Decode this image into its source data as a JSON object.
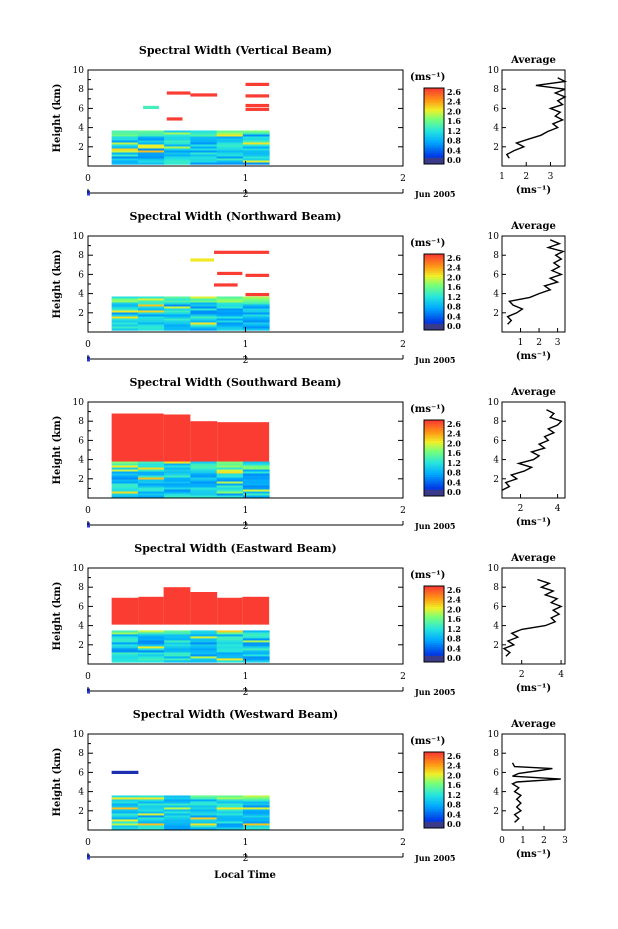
{
  "figure": {
    "xlabel": "Local Time",
    "date_label": "Jun 2005",
    "colorbar_unit": "(ms⁻¹)",
    "colorbar_ticks": [
      "2.6",
      "2.4",
      "2.0",
      "1.6",
      "1.2",
      "0.8",
      "0.4",
      "0.0"
    ],
    "avg_title": "Average",
    "avg_xlabel": "(ms⁻¹)"
  },
  "chart_data": [
    {
      "type": "heatmap",
      "title": "Spectral Width (Vertical Beam)",
      "ylabel": "Height (km)",
      "xlim": [
        0,
        2
      ],
      "ylim": [
        0,
        10
      ],
      "x_ticks": [
        "0",
        "1",
        "2"
      ],
      "y_ticks": [
        "2",
        "4",
        "6",
        "8",
        "10"
      ],
      "day_label": "2",
      "zlim": [
        0,
        2.6
      ],
      "data_extent": {
        "x": [
          0.15,
          1.15
        ],
        "low_layer_top_km": 3.7
      },
      "high_echo_rows": [
        {
          "x": [
            0.35,
            0.45
          ],
          "y": 6.1,
          "z": 1.3
        },
        {
          "x": [
            0.5,
            0.65
          ],
          "y": 7.6,
          "z": 2.6
        },
        {
          "x": [
            0.65,
            0.82
          ],
          "y": 7.4,
          "z": 2.6
        },
        {
          "x": [
            1.0,
            1.15
          ],
          "y": 8.5,
          "z": 2.6
        },
        {
          "x": [
            1.0,
            1.15
          ],
          "y": 7.3,
          "z": 2.6
        },
        {
          "x": [
            1.0,
            1.15
          ],
          "y": 6.3,
          "z": 2.6
        },
        {
          "x": [
            1.0,
            1.15
          ],
          "y": 5.9,
          "z": 2.6
        },
        {
          "x": [
            0.5,
            0.6
          ],
          "y": 4.9,
          "z": 2.6
        }
      ],
      "average": {
        "xlim": [
          1,
          3.6
        ],
        "x_ticks": [
          "1",
          "2",
          "3"
        ],
        "y_ticks": [
          "2",
          "4",
          "6",
          "8",
          "10"
        ],
        "profile": [
          [
            1.3,
            0.8
          ],
          [
            1.2,
            1.2
          ],
          [
            1.5,
            1.6
          ],
          [
            1.9,
            2.0
          ],
          [
            1.6,
            2.4
          ],
          [
            2.1,
            2.8
          ],
          [
            2.6,
            3.2
          ],
          [
            2.9,
            3.6
          ],
          [
            3.3,
            4.0
          ],
          [
            3.1,
            4.4
          ],
          [
            3.5,
            4.8
          ],
          [
            3.2,
            5.2
          ],
          [
            3.4,
            5.6
          ],
          [
            3.0,
            6.0
          ],
          [
            3.5,
            6.4
          ],
          [
            3.3,
            6.8
          ],
          [
            3.6,
            7.2
          ],
          [
            3.2,
            7.6
          ],
          [
            3.6,
            8.0
          ],
          [
            2.4,
            8.4
          ],
          [
            3.6,
            8.8
          ],
          [
            3.3,
            9.2
          ]
        ]
      }
    },
    {
      "type": "heatmap",
      "title": "Spectral Width (Northward Beam)",
      "ylabel": "Height (km)",
      "xlim": [
        0,
        2
      ],
      "ylim": [
        0,
        10
      ],
      "x_ticks": [
        "0",
        "1",
        "2"
      ],
      "y_ticks": [
        "2",
        "4",
        "6",
        "8",
        "10"
      ],
      "day_label": "2",
      "zlim": [
        0,
        2.6
      ],
      "data_extent": {
        "x": [
          0.15,
          1.15
        ],
        "low_layer_top_km": 3.7
      },
      "high_echo_rows": [
        {
          "x": [
            0.65,
            0.8
          ],
          "y": 7.5,
          "z": 1.9
        },
        {
          "x": [
            0.8,
            1.15
          ],
          "y": 8.3,
          "z": 2.6
        },
        {
          "x": [
            0.82,
            0.98
          ],
          "y": 6.1,
          "z": 2.6
        },
        {
          "x": [
            1.0,
            1.15
          ],
          "y": 5.9,
          "z": 2.6
        },
        {
          "x": [
            0.8,
            0.95
          ],
          "y": 4.9,
          "z": 2.6
        },
        {
          "x": [
            1.0,
            1.15
          ],
          "y": 3.9,
          "z": 2.6
        }
      ],
      "average": {
        "xlim": [
          0,
          3.4
        ],
        "x_ticks": [
          "1",
          "2",
          "3"
        ],
        "y_ticks": [
          "2",
          "4",
          "6",
          "8",
          "10"
        ],
        "profile": [
          [
            0.3,
            0.8
          ],
          [
            0.5,
            1.2
          ],
          [
            0.3,
            1.6
          ],
          [
            0.8,
            2.0
          ],
          [
            1.1,
            2.4
          ],
          [
            0.6,
            2.8
          ],
          [
            0.4,
            3.2
          ],
          [
            1.5,
            3.6
          ],
          [
            2.0,
            4.0
          ],
          [
            2.6,
            4.4
          ],
          [
            2.3,
            4.8
          ],
          [
            3.0,
            5.2
          ],
          [
            2.6,
            5.6
          ],
          [
            3.2,
            6.0
          ],
          [
            2.7,
            6.4
          ],
          [
            3.1,
            6.8
          ],
          [
            2.8,
            7.2
          ],
          [
            3.2,
            7.6
          ],
          [
            2.9,
            8.0
          ],
          [
            3.3,
            8.4
          ],
          [
            2.5,
            8.8
          ],
          [
            3.1,
            9.2
          ],
          [
            2.6,
            9.6
          ]
        ]
      }
    },
    {
      "type": "heatmap",
      "title": "Spectral Width (Southward Beam)",
      "ylabel": "Height (km)",
      "xlim": [
        0,
        2
      ],
      "ylim": [
        0,
        10
      ],
      "x_ticks": [
        "0",
        "1",
        "2"
      ],
      "y_ticks": [
        "2",
        "4",
        "6",
        "8",
        "10"
      ],
      "day_label": "2",
      "zlim": [
        0,
        2.6
      ],
      "data_extent": {
        "x": [
          0.15,
          1.15
        ],
        "low_layer_top_km": 3.8
      },
      "high_echo_blocks": [
        {
          "x": [
            0.15,
            0.48
          ],
          "y": [
            3.8,
            8.8
          ],
          "z": 2.6
        },
        {
          "x": [
            0.48,
            0.65
          ],
          "y": [
            3.8,
            8.7
          ],
          "z": 2.6
        },
        {
          "x": [
            0.65,
            0.82
          ],
          "y": [
            3.8,
            8.0
          ],
          "z": 2.6
        },
        {
          "x": [
            0.82,
            1.15
          ],
          "y": [
            3.8,
            7.9
          ],
          "z": 2.6
        }
      ],
      "average": {
        "xlim": [
          1,
          4.4
        ],
        "x_ticks": [
          "2",
          "4"
        ],
        "y_ticks": [
          "2",
          "4",
          "6",
          "8",
          "10"
        ],
        "profile": [
          [
            1.0,
            0.8
          ],
          [
            1.4,
            1.2
          ],
          [
            1.2,
            1.6
          ],
          [
            1.8,
            2.0
          ],
          [
            1.5,
            2.4
          ],
          [
            2.2,
            2.8
          ],
          [
            2.6,
            3.2
          ],
          [
            1.9,
            3.6
          ],
          [
            2.7,
            4.0
          ],
          [
            3.0,
            4.4
          ],
          [
            2.6,
            4.8
          ],
          [
            3.3,
            5.2
          ],
          [
            3.0,
            5.6
          ],
          [
            3.5,
            6.0
          ],
          [
            3.3,
            6.4
          ],
          [
            3.8,
            6.8
          ],
          [
            3.5,
            7.2
          ],
          [
            4.0,
            7.6
          ],
          [
            4.2,
            8.0
          ],
          [
            3.6,
            8.4
          ],
          [
            3.8,
            8.8
          ],
          [
            3.4,
            9.2
          ]
        ]
      }
    },
    {
      "type": "heatmap",
      "title": "Spectral Width (Eastward Beam)",
      "ylabel": "Height (km)",
      "xlim": [
        0,
        2
      ],
      "ylim": [
        0,
        10
      ],
      "x_ticks": [
        "0",
        "1",
        "2"
      ],
      "y_ticks": [
        "2",
        "4",
        "6",
        "8",
        "10"
      ],
      "day_label": "2",
      "zlim": [
        0,
        2.6
      ],
      "data_extent": {
        "x": [
          0.15,
          1.15
        ],
        "low_layer_top_km": 3.5
      },
      "high_echo_blocks": [
        {
          "x": [
            0.15,
            0.32
          ],
          "y": [
            4.1,
            6.9
          ],
          "z": 2.6
        },
        {
          "x": [
            0.32,
            0.48
          ],
          "y": [
            4.1,
            7.0
          ],
          "z": 2.6
        },
        {
          "x": [
            0.48,
            0.65
          ],
          "y": [
            4.1,
            8.0
          ],
          "z": 2.6
        },
        {
          "x": [
            0.65,
            0.82
          ],
          "y": [
            4.1,
            7.5
          ],
          "z": 2.6
        },
        {
          "x": [
            0.82,
            0.98
          ],
          "y": [
            4.1,
            6.9
          ],
          "z": 2.6
        },
        {
          "x": [
            0.98,
            1.15
          ],
          "y": [
            4.1,
            7.0
          ],
          "z": 2.6
        }
      ],
      "average": {
        "xlim": [
          1,
          4.2
        ],
        "x_ticks": [
          "2",
          "4"
        ],
        "y_ticks": [
          "2",
          "4",
          "6",
          "8",
          "10"
        ],
        "profile": [
          [
            1.2,
            0.8
          ],
          [
            1.4,
            1.2
          ],
          [
            1.1,
            1.6
          ],
          [
            1.6,
            2.0
          ],
          [
            1.3,
            2.4
          ],
          [
            1.8,
            2.8
          ],
          [
            1.5,
            3.2
          ],
          [
            2.0,
            3.6
          ],
          [
            3.2,
            4.0
          ],
          [
            3.7,
            4.4
          ],
          [
            3.5,
            4.8
          ],
          [
            3.9,
            5.2
          ],
          [
            3.6,
            5.6
          ],
          [
            4.0,
            6.0
          ],
          [
            3.5,
            6.4
          ],
          [
            3.8,
            6.8
          ],
          [
            3.2,
            7.2
          ],
          [
            3.6,
            7.6
          ],
          [
            3.0,
            8.0
          ],
          [
            3.4,
            8.4
          ],
          [
            2.8,
            8.8
          ]
        ]
      }
    },
    {
      "type": "heatmap",
      "title": "Spectral Width (Westward Beam)",
      "ylabel": "Height (km)",
      "xlim": [
        0,
        2
      ],
      "ylim": [
        0,
        10
      ],
      "x_ticks": [
        "0",
        "1",
        "2"
      ],
      "y_ticks": [
        "2",
        "4",
        "6",
        "8",
        "10"
      ],
      "day_label": "2",
      "zlim": [
        0,
        2.6
      ],
      "data_extent": {
        "x": [
          0.15,
          1.15
        ],
        "low_layer_top_km": 3.6
      },
      "high_echo_rows": [
        {
          "x": [
            0.15,
            0.32
          ],
          "y": 6.0,
          "z": 0.1
        }
      ],
      "average": {
        "xlim": [
          0,
          3
        ],
        "x_ticks": [
          "0",
          "1",
          "2",
          "3"
        ],
        "y_ticks": [
          "2",
          "4",
          "6",
          "8",
          "10"
        ],
        "profile": [
          [
            0.6,
            0.8
          ],
          [
            0.8,
            1.2
          ],
          [
            0.6,
            1.6
          ],
          [
            0.9,
            2.0
          ],
          [
            0.7,
            2.4
          ],
          [
            0.9,
            2.8
          ],
          [
            0.7,
            3.2
          ],
          [
            0.9,
            3.6
          ],
          [
            0.6,
            4.0
          ],
          [
            0.8,
            4.4
          ],
          [
            0.5,
            4.8
          ],
          [
            0.7,
            5.0
          ],
          [
            2.8,
            5.3
          ],
          [
            0.5,
            5.6
          ],
          [
            0.8,
            5.9
          ],
          [
            1.8,
            6.2
          ],
          [
            2.4,
            6.4
          ],
          [
            0.6,
            6.6
          ],
          [
            0.5,
            7.0
          ]
        ]
      }
    }
  ]
}
